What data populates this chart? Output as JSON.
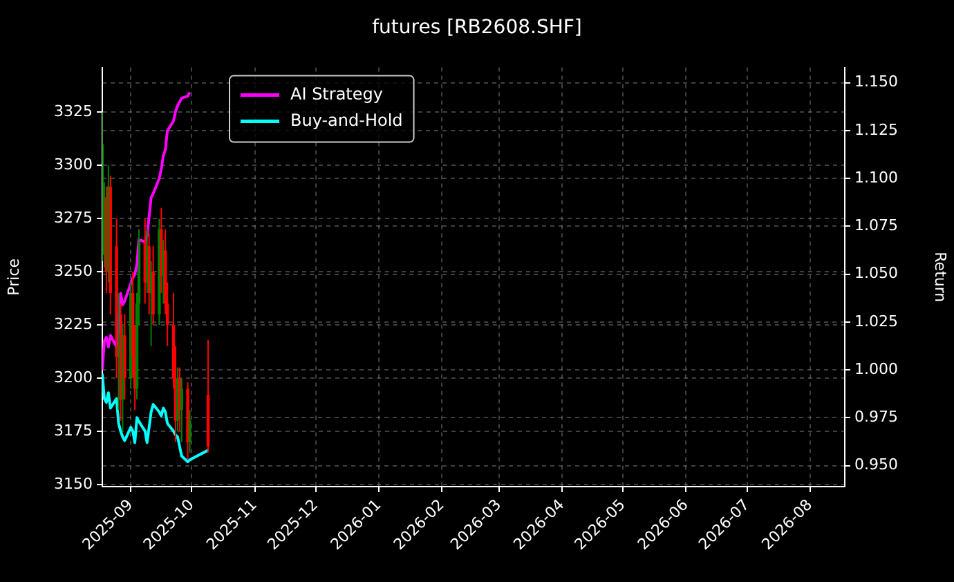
{
  "chart_data": {
    "type": "candlestick",
    "title": "futures [RB2608.SHF]",
    "ylabel": "Price",
    "y2label": "Return",
    "x": [
      "2025-08-18",
      "2025-08-19",
      "2025-08-20",
      "2025-08-21",
      "2025-08-22",
      "2025-08-25",
      "2025-08-26",
      "2025-08-27",
      "2025-08-28",
      "2025-08-29",
      "2025-09-01",
      "2025-09-02",
      "2025-09-03",
      "2025-09-04",
      "2025-09-05",
      "2025-09-08",
      "2025-09-09",
      "2025-09-10",
      "2025-09-11",
      "2025-09-12",
      "2025-09-15",
      "2025-09-16",
      "2025-09-17",
      "2025-09-18",
      "2025-09-19",
      "2025-09-22",
      "2025-09-23",
      "2025-09-24",
      "2025-09-25",
      "2025-09-26",
      "2025-09-29",
      "2025-09-30",
      "2025-10-09"
    ],
    "ohlc": [
      [
        3262,
        3325,
        3255,
        3310
      ],
      [
        3258,
        3292,
        3252,
        3285
      ],
      [
        3285,
        3290,
        3240,
        3250
      ],
      [
        3250,
        3300,
        3245,
        3290
      ],
      [
        3290,
        3295,
        3230,
        3240
      ],
      [
        3262,
        3275,
        3200,
        3210
      ],
      [
        3210,
        3240,
        3185,
        3230
      ],
      [
        3230,
        3235,
        3180,
        3190
      ],
      [
        3190,
        3225,
        3175,
        3220
      ],
      [
        3220,
        3230,
        3190,
        3200
      ],
      [
        3200,
        3245,
        3195,
        3240
      ],
      [
        3240,
        3250,
        3200,
        3210
      ],
      [
        3210,
        3225,
        3185,
        3195
      ],
      [
        3195,
        3240,
        3190,
        3235
      ],
      [
        3235,
        3270,
        3225,
        3265
      ],
      [
        3265,
        3275,
        3235,
        3245
      ],
      [
        3245,
        3270,
        3240,
        3262
      ],
      [
        3262,
        3268,
        3230,
        3240
      ],
      [
        3240,
        3255,
        3215,
        3250
      ],
      [
        3250,
        3262,
        3225,
        3230
      ],
      [
        3230,
        3275,
        3225,
        3270
      ],
      [
        3270,
        3280,
        3240,
        3248
      ],
      [
        3248,
        3265,
        3235,
        3260
      ],
      [
        3260,
        3270,
        3230,
        3235
      ],
      [
        3235,
        3245,
        3215,
        3225
      ],
      [
        3225,
        3240,
        3195,
        3200
      ],
      [
        3200,
        3215,
        3170,
        3180
      ],
      [
        3180,
        3205,
        3175,
        3200
      ],
      [
        3200,
        3205,
        3175,
        3185
      ],
      [
        3185,
        3200,
        3170,
        3195
      ],
      [
        3195,
        3198,
        3162,
        3170
      ],
      [
        3170,
        3185,
        3165,
        3180
      ],
      [
        3192,
        3218,
        3165,
        3168
      ]
    ],
    "colors": [
      "#008000",
      "#008000",
      "#ff0000",
      "#008000",
      "#ff0000",
      "#ff0000",
      "#008000",
      "#ff0000",
      "#008000",
      "#ff0000",
      "#008000",
      "#ff0000",
      "#ff0000",
      "#008000",
      "#008000",
      "#ff0000",
      "#008000",
      "#ff0000",
      "#008000",
      "#ff0000",
      "#008000",
      "#ff0000",
      "#008000",
      "#ff0000",
      "#ff0000",
      "#ff0000",
      "#ff0000",
      "#008000",
      "#ff0000",
      "#008000",
      "#ff0000",
      "#008000",
      "#ff0000"
    ],
    "series": [
      {
        "name": "AI Strategy",
        "type": "line",
        "axis": "y2",
        "color": "#ff00ff",
        "values": [
          1.0,
          1.015,
          1.017,
          1.012,
          1.018,
          1.012,
          1.022,
          1.04,
          1.034,
          1.036,
          1.045,
          1.048,
          1.05,
          1.055,
          1.068,
          1.067,
          1.07,
          1.08,
          1.09,
          1.092,
          1.1,
          1.105,
          1.112,
          1.115,
          1.125,
          1.13,
          1.135,
          1.138,
          1.14,
          1.142,
          1.143,
          1.145,
          null
        ]
      },
      {
        "name": "Buy-and-Hold",
        "type": "line",
        "axis": "y2",
        "color": "#00ffff",
        "values": [
          0.998,
          0.985,
          0.983,
          0.988,
          0.98,
          0.985,
          0.972,
          0.968,
          0.965,
          0.963,
          0.97,
          0.968,
          0.962,
          0.975,
          0.973,
          0.968,
          0.962,
          0.97,
          0.978,
          0.982,
          0.978,
          0.976,
          0.98,
          0.978,
          0.972,
          0.968,
          0.966,
          0.965,
          0.96,
          0.955,
          0.952,
          0.953,
          0.958
        ]
      }
    ],
    "xlim": [
      "2025-08-18",
      "2026-08-18"
    ],
    "xticks": [
      "2025-09",
      "2025-10",
      "2025-11",
      "2025-12",
      "2026-01",
      "2026-02",
      "2026-03",
      "2026-04",
      "2026-05",
      "2026-06",
      "2026-07",
      "2026-08"
    ],
    "ylim": [
      3149,
      3346
    ],
    "yticks": [
      3150,
      3175,
      3200,
      3225,
      3250,
      3275,
      3300,
      3325
    ],
    "y2lim": [
      0.939,
      1.158
    ],
    "y2ticks": [
      {
        "value": 0.95,
        "label": "0.950"
      },
      0.975,
      {
        "value": 1,
        "label": "1.000"
      },
      1.025,
      {
        "value": 1.05,
        "label": "1.050"
      },
      1.075,
      {
        "value": 1.1,
        "label": "1.100"
      },
      1.125,
      {
        "value": 1.15,
        "label": "1.150"
      }
    ],
    "grid": true,
    "legend": "top left"
  }
}
